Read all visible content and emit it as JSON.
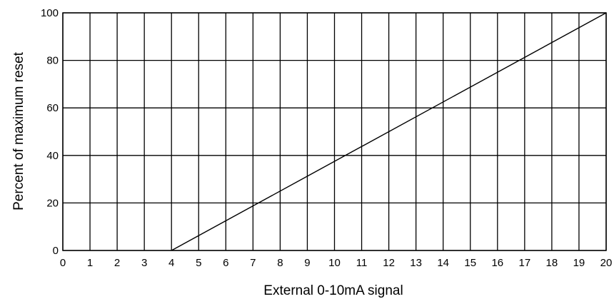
{
  "chart_data": {
    "type": "line",
    "title": "",
    "xlabel": "External 0-10mA signal",
    "ylabel": "Percent of maximum reset",
    "xlim": [
      0,
      20
    ],
    "ylim": [
      0,
      100
    ],
    "xticks": [
      0,
      1,
      2,
      3,
      4,
      5,
      6,
      7,
      8,
      9,
      10,
      11,
      12,
      13,
      14,
      15,
      16,
      17,
      18,
      19,
      20
    ],
    "yticks": [
      0,
      20,
      40,
      60,
      80,
      100
    ],
    "grid": true,
    "series": [
      {
        "x": [
          4,
          20
        ],
        "y": [
          0,
          100
        ],
        "color": "#000000"
      }
    ]
  }
}
